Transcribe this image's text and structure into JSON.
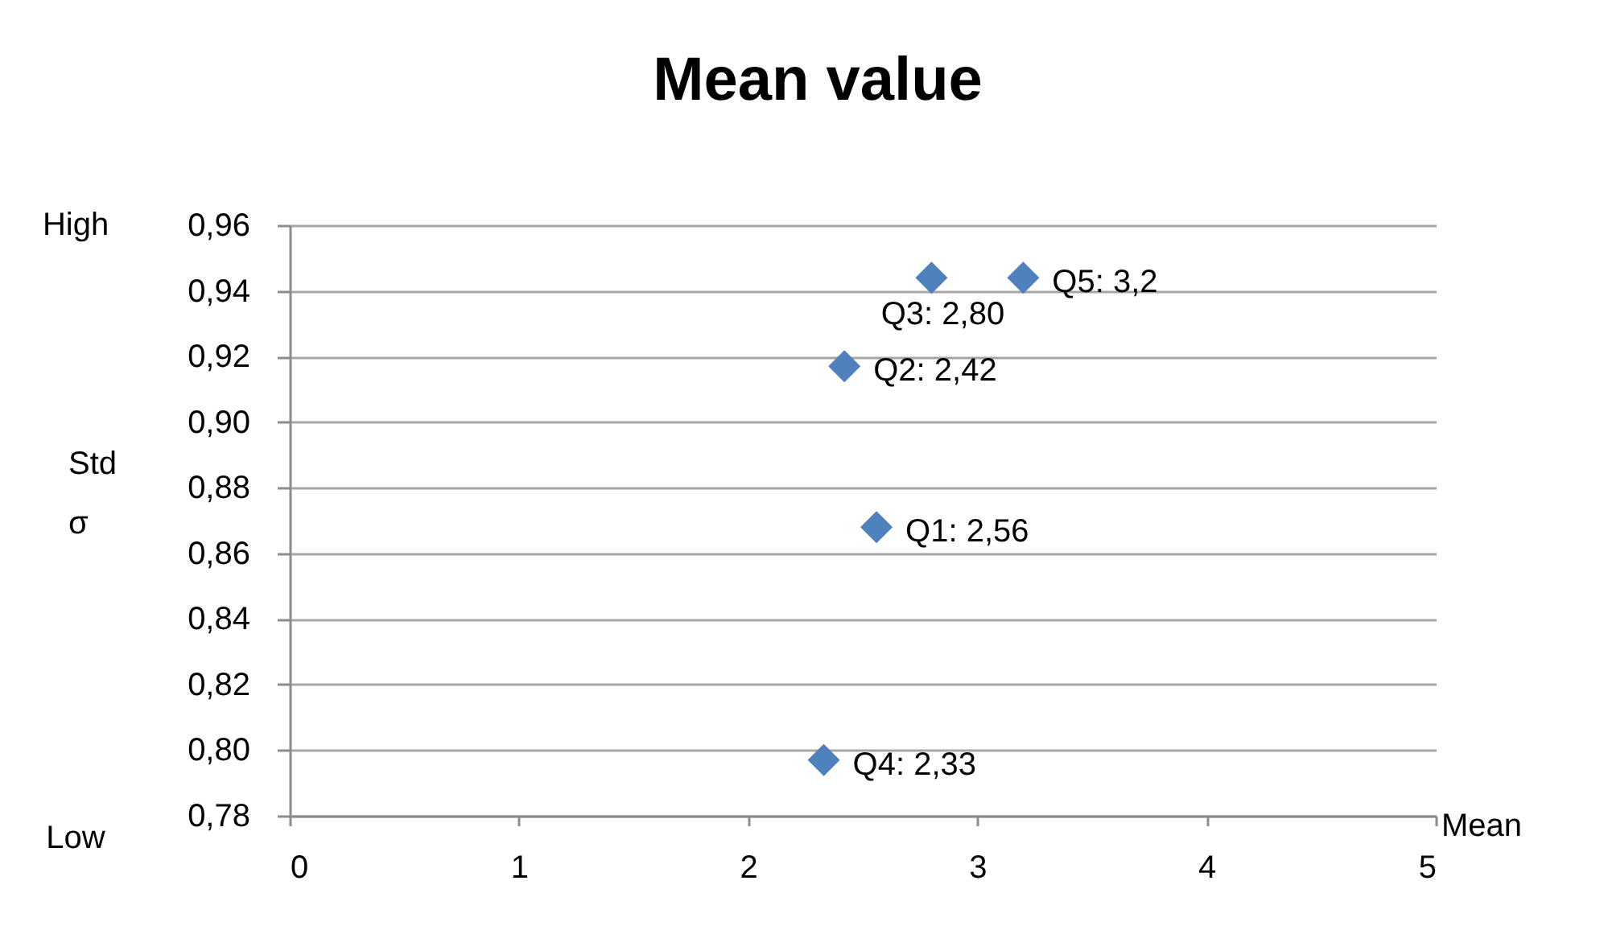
{
  "chart_data": {
    "type": "scatter",
    "title": "Mean value",
    "xlabel": "Mean",
    "ylabel": "Std σ",
    "annotations": [
      "High",
      "Low"
    ],
    "x": [
      2.56,
      2.42,
      2.8,
      2.33,
      3.2
    ],
    "series": [
      {
        "color": "#4f81bd",
        "values": [
          0.868,
          0.917,
          0.944,
          0.797,
          0.944
        ],
        "value_labels": [
          "Q1: 2,56",
          "Q2: 2,42",
          "Q3: 2,80",
          "Q4: 2,33",
          "Q5: 3,2"
        ]
      }
    ],
    "xlim": [
      0,
      5
    ],
    "xticks": [
      0,
      1,
      2,
      3,
      4,
      5
    ],
    "ylim": [
      0.78,
      0.96
    ],
    "yticks": [
      {
        "value": 0.78,
        "label": "0,78"
      },
      {
        "value": 0.8,
        "label": "0,80"
      },
      {
        "value": 0.82,
        "label": "0,82"
      },
      {
        "value": 0.84,
        "label": "0,84"
      },
      {
        "value": 0.86,
        "label": "0,86"
      },
      {
        "value": 0.88,
        "label": "0,88"
      },
      {
        "value": 0.9,
        "label": "0,90"
      },
      {
        "value": 0.92,
        "label": "0,92"
      },
      {
        "value": 0.94,
        "label": "0,94"
      },
      {
        "value": 0.96,
        "label": "0,96"
      }
    ],
    "grid": "y",
    "marker": "diamond"
  }
}
